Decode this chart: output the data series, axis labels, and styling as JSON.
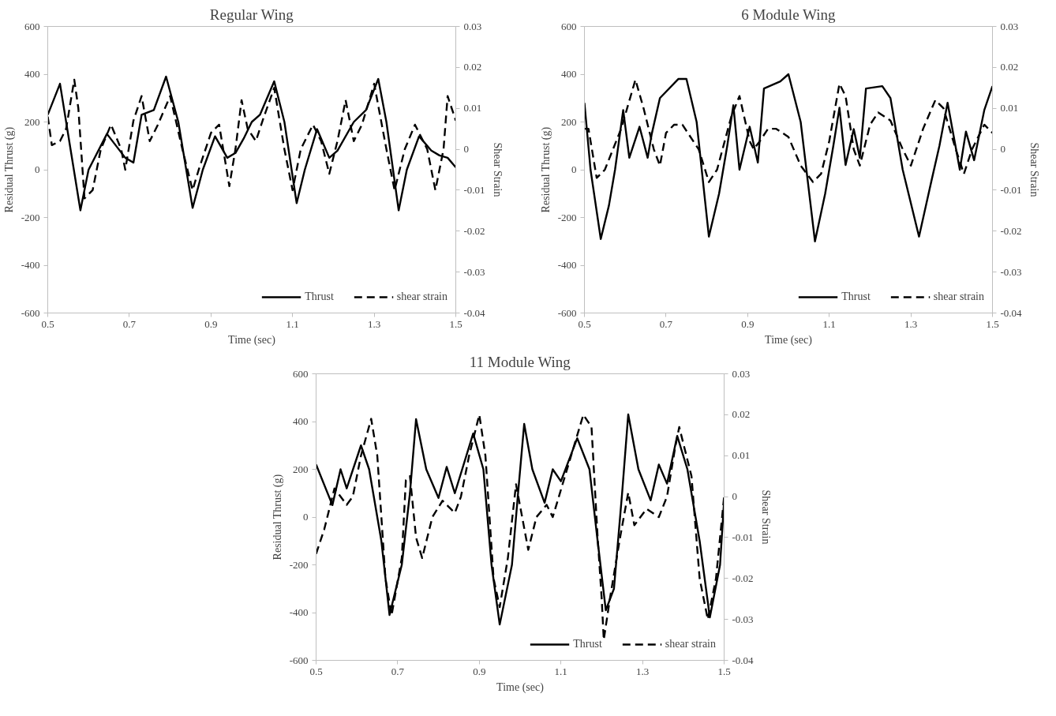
{
  "chart_data": [
    {
      "type": "line",
      "title": "Regular Wing",
      "xlabel": "Time (sec)",
      "ylabel": "Residual Thrust (g)",
      "y2label": "Shear Strain",
      "xlim": [
        0.5,
        1.5
      ],
      "xticks": [
        0.5,
        0.7,
        0.9,
        1.1,
        1.3,
        1.5
      ],
      "ylim": [
        -600,
        600
      ],
      "yticks": [
        -600,
        -400,
        -200,
        0,
        200,
        400,
        600
      ],
      "y2lim": [
        -0.04,
        0.03
      ],
      "y2ticks": [
        -0.04,
        -0.03,
        -0.02,
        -0.01,
        0,
        0.01,
        0.02,
        0.03
      ],
      "grid": false,
      "legend": "bottom right",
      "series": [
        {
          "name": "Thrust",
          "color": "#000000",
          "line_style": "solid",
          "x": [
            0.5,
            0.53,
            0.58,
            0.6,
            0.645,
            0.69,
            0.71,
            0.73,
            0.76,
            0.79,
            0.82,
            0.855,
            0.88,
            0.91,
            0.94,
            0.96,
            0.98,
            1.0,
            1.02,
            1.055,
            1.08,
            1.11,
            1.13,
            1.16,
            1.19,
            1.21,
            1.25,
            1.28,
            1.31,
            1.33,
            1.36,
            1.38,
            1.41,
            1.44,
            1.46,
            1.48,
            1.5
          ],
          "values": [
            230,
            360,
            -170,
            0,
            150,
            50,
            30,
            230,
            250,
            390,
            200,
            -160,
            0,
            140,
            50,
            70,
            130,
            200,
            230,
            370,
            200,
            -140,
            0,
            170,
            50,
            80,
            200,
            250,
            380,
            200,
            -170,
            0,
            140,
            80,
            60,
            50,
            10
          ]
        },
        {
          "name": "shear strain",
          "color": "#000000",
          "line_style": "dashed",
          "axis": "y2",
          "x": [
            0.5,
            0.51,
            0.53,
            0.545,
            0.565,
            0.575,
            0.59,
            0.61,
            0.63,
            0.655,
            0.68,
            0.69,
            0.71,
            0.73,
            0.75,
            0.77,
            0.8,
            0.83,
            0.855,
            0.87,
            0.9,
            0.92,
            0.945,
            0.96,
            0.975,
            0.99,
            1.01,
            1.03,
            1.055,
            1.08,
            1.1,
            1.12,
            1.15,
            1.17,
            1.19,
            1.21,
            1.23,
            1.25,
            1.27,
            1.3,
            1.33,
            1.35,
            1.375,
            1.4,
            1.43,
            1.45,
            1.47,
            1.48,
            1.5
          ],
          "values": [
            0.008,
            0.001,
            0.002,
            0.005,
            0.017,
            0.01,
            -0.012,
            -0.01,
            0.0,
            0.006,
            0.0,
            -0.005,
            0.007,
            0.013,
            0.002,
            0.006,
            0.013,
            0.0,
            -0.01,
            -0.005,
            0.004,
            0.006,
            -0.009,
            0.0,
            0.012,
            0.005,
            0.002,
            0.008,
            0.015,
            0.0,
            -0.01,
            0.0,
            0.006,
            0.002,
            -0.006,
            0.002,
            0.012,
            0.002,
            0.006,
            0.016,
            0.0,
            -0.01,
            0.0,
            0.006,
            0.0,
            -0.01,
            0.0,
            0.013,
            0.007
          ]
        }
      ]
    },
    {
      "type": "line",
      "title": "6 Module Wing",
      "xlabel": "Time (sec)",
      "ylabel": "Residual Thrust (g)",
      "y2label": "Shear Strain",
      "xlim": [
        0.5,
        1.5
      ],
      "xticks": [
        0.5,
        0.7,
        0.9,
        1.1,
        1.3,
        1.5
      ],
      "ylim": [
        -600,
        600
      ],
      "yticks": [
        -600,
        -400,
        -200,
        0,
        200,
        400,
        600
      ],
      "y2lim": [
        -0.04,
        0.03
      ],
      "y2ticks": [
        -0.04,
        -0.03,
        -0.02,
        -0.01,
        0,
        0.01,
        0.02,
        0.03
      ],
      "grid": false,
      "legend": "bottom right",
      "series": [
        {
          "name": "Thrust",
          "color": "#000000",
          "line_style": "solid",
          "x": [
            0.5,
            0.515,
            0.54,
            0.56,
            0.575,
            0.595,
            0.61,
            0.635,
            0.655,
            0.665,
            0.685,
            0.73,
            0.75,
            0.775,
            0.805,
            0.83,
            0.85,
            0.865,
            0.88,
            0.905,
            0.925,
            0.94,
            0.98,
            1.0,
            1.03,
            1.065,
            1.09,
            1.11,
            1.125,
            1.14,
            1.16,
            1.175,
            1.19,
            1.23,
            1.25,
            1.28,
            1.32,
            1.35,
            1.37,
            1.39,
            1.42,
            1.435,
            1.455,
            1.48,
            1.5
          ],
          "values": [
            280,
            0,
            -290,
            -150,
            0,
            250,
            50,
            180,
            50,
            150,
            300,
            380,
            380,
            200,
            -280,
            -100,
            100,
            270,
            0,
            180,
            30,
            340,
            370,
            400,
            200,
            -300,
            -100,
            100,
            260,
            20,
            170,
            50,
            340,
            350,
            300,
            0,
            -280,
            -50,
            100,
            280,
            0,
            160,
            40,
            250,
            350
          ]
        },
        {
          "name": "shear strain",
          "color": "#000000",
          "line_style": "dashed",
          "axis": "y2",
          "x": [
            0.5,
            0.51,
            0.53,
            0.55,
            0.59,
            0.625,
            0.645,
            0.67,
            0.685,
            0.7,
            0.72,
            0.74,
            0.78,
            0.805,
            0.825,
            0.86,
            0.88,
            0.905,
            0.915,
            0.93,
            0.95,
            0.97,
            1.0,
            1.03,
            1.06,
            1.08,
            1.1,
            1.125,
            1.14,
            1.16,
            1.175,
            1.2,
            1.22,
            1.25,
            1.28,
            1.3,
            1.33,
            1.36,
            1.38,
            1.41,
            1.43,
            1.45,
            1.48,
            1.5
          ],
          "values": [
            0.005,
            0.005,
            -0.007,
            -0.005,
            0.005,
            0.017,
            0.01,
            0.0,
            -0.004,
            0.004,
            0.006,
            0.006,
            0.0,
            -0.008,
            -0.005,
            0.008,
            0.013,
            0.002,
            0.0,
            0.002,
            0.005,
            0.005,
            0.003,
            -0.004,
            -0.008,
            -0.006,
            0.002,
            0.016,
            0.013,
            0.0,
            -0.004,
            0.006,
            0.009,
            0.007,
            0.0,
            -0.004,
            0.005,
            0.012,
            0.01,
            0.0,
            -0.006,
            0.0,
            0.006,
            0.004
          ]
        }
      ]
    },
    {
      "type": "line",
      "title": "11 Module Wing",
      "xlabel": "Time (sec)",
      "ylabel": "Residual Thrust (g)",
      "y2label": "Shear Strain",
      "xlim": [
        0.5,
        1.5
      ],
      "xticks": [
        0.5,
        0.7,
        0.9,
        1.1,
        1.3,
        1.5
      ],
      "ylim": [
        -600,
        600
      ],
      "yticks": [
        -600,
        -400,
        -200,
        0,
        200,
        400,
        600
      ],
      "y2lim": [
        -0.04,
        0.03
      ],
      "y2ticks": [
        -0.04,
        -0.03,
        -0.02,
        -0.01,
        0,
        0.01,
        0.02,
        0.03
      ],
      "grid": false,
      "legend": "bottom right",
      "series": [
        {
          "name": "Thrust",
          "color": "#000000",
          "line_style": "solid",
          "x": [
            0.5,
            0.54,
            0.56,
            0.575,
            0.61,
            0.63,
            0.66,
            0.68,
            0.71,
            0.73,
            0.745,
            0.77,
            0.8,
            0.82,
            0.84,
            0.885,
            0.91,
            0.93,
            0.95,
            0.98,
            0.995,
            1.01,
            1.03,
            1.06,
            1.08,
            1.1,
            1.14,
            1.17,
            1.19,
            1.21,
            1.23,
            1.25,
            1.265,
            1.29,
            1.32,
            1.34,
            1.36,
            1.385,
            1.41,
            1.44,
            1.465,
            1.49,
            1.5
          ],
          "values": [
            220,
            50,
            200,
            120,
            300,
            200,
            -100,
            -410,
            -200,
            100,
            410,
            200,
            80,
            210,
            100,
            350,
            200,
            -200,
            -450,
            -200,
            100,
            390,
            200,
            60,
            200,
            150,
            330,
            200,
            -100,
            -390,
            -300,
            100,
            430,
            200,
            70,
            220,
            140,
            340,
            200,
            -100,
            -420,
            -200,
            70
          ]
        },
        {
          "name": "shear strain",
          "color": "#000000",
          "line_style": "dashed",
          "axis": "y2",
          "x": [
            0.5,
            0.52,
            0.545,
            0.575,
            0.59,
            0.61,
            0.635,
            0.65,
            0.67,
            0.685,
            0.71,
            0.72,
            0.73,
            0.745,
            0.76,
            0.785,
            0.81,
            0.84,
            0.855,
            0.875,
            0.9,
            0.915,
            0.935,
            0.95,
            0.97,
            0.99,
            1.005,
            1.02,
            1.04,
            1.065,
            1.08,
            1.11,
            1.155,
            1.175,
            1.19,
            1.2,
            1.205,
            1.22,
            1.245,
            1.265,
            1.28,
            1.31,
            1.34,
            1.36,
            1.38,
            1.39,
            1.42,
            1.44,
            1.46,
            1.48,
            1.5
          ],
          "values": [
            -0.014,
            -0.008,
            0.002,
            -0.002,
            0.0,
            0.01,
            0.019,
            0.01,
            -0.02,
            -0.029,
            -0.015,
            0.004,
            0.005,
            -0.01,
            -0.015,
            -0.005,
            -0.001,
            -0.004,
            0.0,
            0.01,
            0.02,
            0.01,
            -0.02,
            -0.027,
            -0.015,
            0.003,
            -0.005,
            -0.013,
            -0.005,
            -0.002,
            -0.005,
            0.005,
            0.02,
            0.017,
            -0.01,
            -0.025,
            -0.035,
            -0.025,
            -0.01,
            0.001,
            -0.007,
            -0.003,
            -0.005,
            0.0,
            0.012,
            0.017,
            0.005,
            -0.02,
            -0.03,
            -0.02,
            0.0
          ]
        }
      ]
    }
  ]
}
